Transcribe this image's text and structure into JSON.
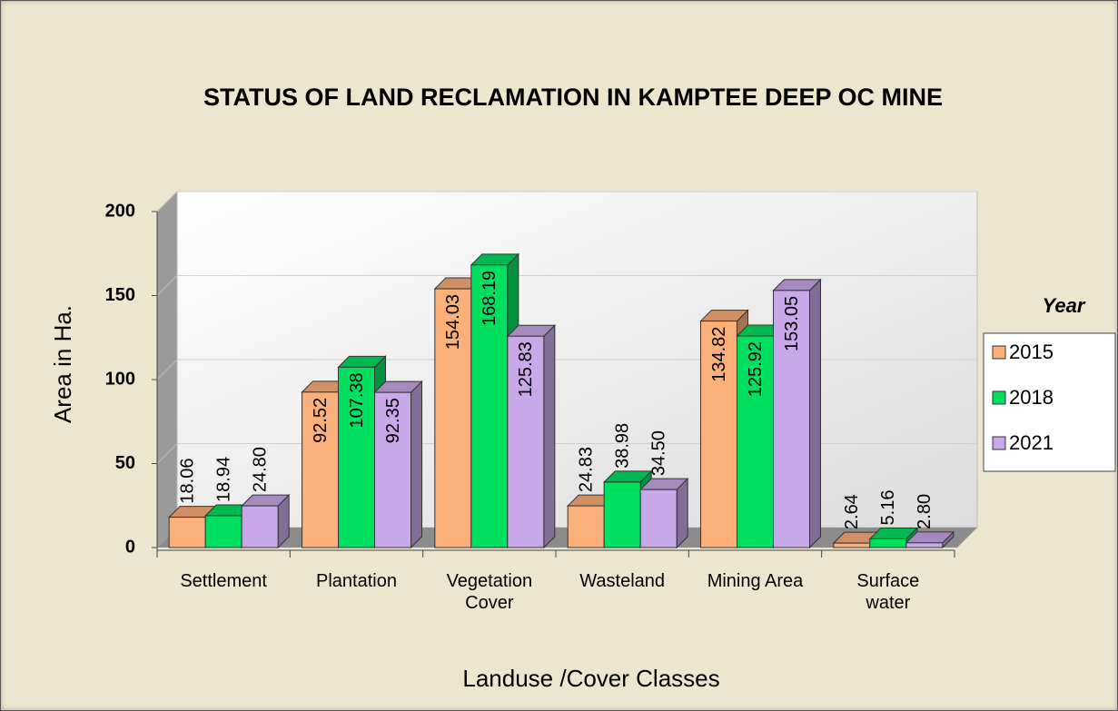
{
  "chart_data": {
    "type": "bar3d",
    "title": "STATUS OF LAND RECLAMATION IN KAMPTEE DEEP OC MINE",
    "x_label": "Landuse /Cover Classes",
    "y_label": "Area in Ha.",
    "legend_title": "Year",
    "legend_position": "right",
    "categories": [
      "Settlement",
      "Plantation",
      "Vegetation Cover",
      "Wasteland",
      "Mining Area",
      "Surface water"
    ],
    "series": [
      {
        "name": "2015",
        "color": "#fbb07a",
        "values": [
          18.06,
          92.52,
          154.03,
          24.83,
          134.82,
          2.64
        ],
        "value_labels": [
          "18.06",
          "92.52",
          "154.03",
          "24.83",
          "134.82",
          "2.64"
        ]
      },
      {
        "name": "2018",
        "color": "#00e060",
        "values": [
          18.94,
          107.38,
          168.19,
          38.98,
          125.92,
          5.16
        ],
        "value_labels": [
          "18.94",
          "107.38",
          "168.19",
          "38.98",
          "125.92",
          "5.16"
        ]
      },
      {
        "name": "2021",
        "color": "#c8a8e8",
        "values": [
          24.8,
          92.35,
          125.83,
          34.5,
          153.05,
          2.8
        ],
        "value_labels": [
          "24.80",
          "92.35",
          "125.83",
          "34.50",
          "153.05",
          "2.80"
        ]
      }
    ],
    "ylim": [
      0,
      200
    ],
    "yticks": [
      0,
      50,
      100,
      150,
      200
    ],
    "grid": true
  }
}
